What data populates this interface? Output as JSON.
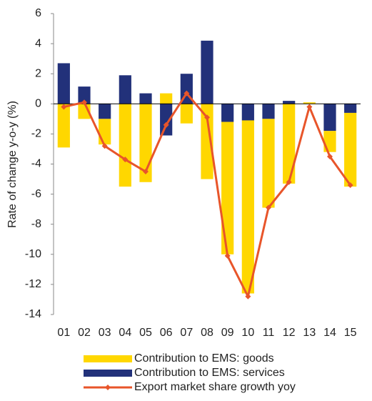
{
  "chart_data": {
    "type": "bar",
    "stacked": true,
    "y_label": "Rate of change y-o-y (%)",
    "categories": [
      "01",
      "02",
      "03",
      "04",
      "05",
      "06",
      "07",
      "08",
      "09",
      "10",
      "11",
      "12",
      "13",
      "14",
      "15"
    ],
    "series": [
      {
        "name": "Contribution to EMS: goods",
        "color": "#ffd700",
        "type": "bar",
        "values": [
          -2.9,
          -1.0,
          -1.7,
          -5.5,
          -5.2,
          0.7,
          -1.3,
          -5.0,
          -8.8,
          -11.5,
          -5.9,
          -5.3,
          0.1,
          -1.4,
          -4.9
        ]
      },
      {
        "name": "Contribution to EMS: services",
        "color": "#22317a",
        "type": "bar",
        "values": [
          2.7,
          1.15,
          -1.0,
          1.9,
          0.7,
          -2.1,
          2.0,
          4.2,
          -1.2,
          -1.1,
          -1.0,
          0.2,
          0,
          -1.8,
          -0.6
        ]
      },
      {
        "name": "Export market share growth yoy",
        "color": "#e8552a",
        "type": "line",
        "values": [
          -0.2,
          0.1,
          -2.8,
          -3.7,
          -4.5,
          -1.4,
          0.7,
          -0.9,
          -10.1,
          -12.8,
          -6.9,
          -5.2,
          -0.2,
          -3.5,
          -5.4
        ]
      }
    ],
    "ylim": [
      -14,
      6
    ],
    "yticks": [
      -14,
      -12,
      -10,
      -8,
      -6,
      -4,
      -2,
      0,
      2,
      4,
      6
    ],
    "grid": false
  }
}
